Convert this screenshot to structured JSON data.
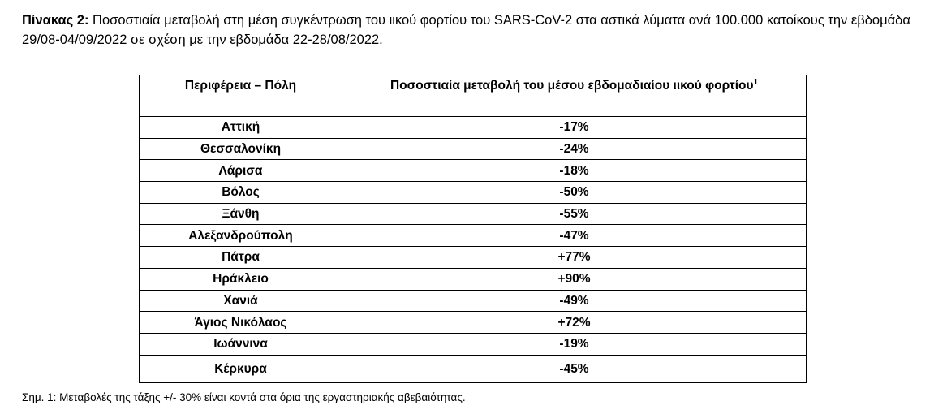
{
  "caption": {
    "label": "Πίνακας 2:",
    "text": " Ποσοστιαία μεταβολή στη μέση συγκέντρωση του ιικού φορτίου του SARS-CoV-2 στα αστικά λύματα ανά 100.000 κατοίκους την εβδομάδα 29/08-04/09/2022 σε σχέση με την εβδομάδα 22-28/08/2022."
  },
  "table": {
    "header_region": "Περιφέρεια – Πόλη",
    "header_change": "Ποσοστιαία μεταβολή του μέσου εβδομαδιαίου ιικού φορτίου",
    "header_change_sup": "1",
    "rows": [
      {
        "region": "Αττική",
        "change": "-17%"
      },
      {
        "region": "Θεσσαλονίκη",
        "change": "-24%"
      },
      {
        "region": "Λάρισα",
        "change": "-18%"
      },
      {
        "region": "Βόλος",
        "change": "-50%"
      },
      {
        "region": "Ξάνθη",
        "change": "-55%"
      },
      {
        "region": "Αλεξανδρούπολη",
        "change": "-47%"
      },
      {
        "region": "Πάτρα",
        "change": "+77%"
      },
      {
        "region": "Ηράκλειο",
        "change": "+90%"
      },
      {
        "region": "Χανιά",
        "change": "-49%"
      },
      {
        "region": "Άγιος Νικόλαος",
        "change": "+72%"
      },
      {
        "region": "Ιωάννινα",
        "change": "-19%"
      },
      {
        "region": "Κέρκυρα",
        "change": "-45%"
      }
    ]
  },
  "footnote": "Σημ. 1: Μεταβολές της τάξης +/- 30% είναι κοντά στα όρια της εργαστηριακής αβεβαιότητας."
}
